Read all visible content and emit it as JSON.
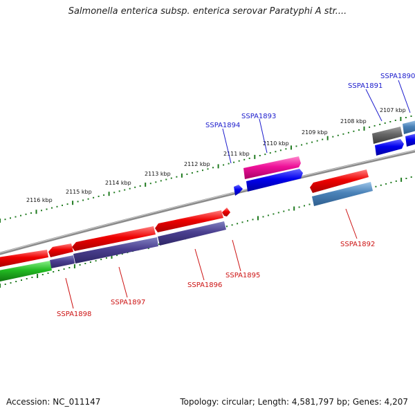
{
  "header": {
    "title": "Salmonella enterica subsp. enterica serovar Paratyphi A str...."
  },
  "footer": {
    "accession": "Accession: NC_011147",
    "summary": "Topology: circular; Length: 4,581,797 bp; Genes: 4,207"
  },
  "colors": {
    "backbone": "#8a8a8a",
    "ticks": "#1f7a1f",
    "label_forward": "#1a1acc",
    "label_reverse": "#cc1111"
  },
  "ticks": {
    "labels": [
      "2107 kbp",
      "2108 kbp",
      "2109 kbp",
      "2110 kbp",
      "2111 kbp",
      "2112 kbp",
      "2113 kbp",
      "2114 kbp",
      "2115 kbp",
      "2116 kbp"
    ]
  },
  "genes": {
    "forward_labels": [
      "SSPA1890",
      "SSPA1891",
      "SSPA1893",
      "SSPA1894"
    ],
    "reverse_labels": [
      "SSPA1892",
      "SSPA1895",
      "SSPA1896",
      "SSPA1897",
      "SSPA1898"
    ]
  }
}
